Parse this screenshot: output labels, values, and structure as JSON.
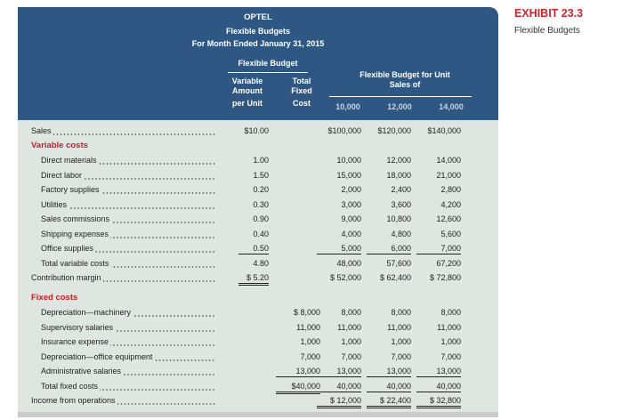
{
  "exhibit": {
    "label": "EXHIBIT 23.3",
    "subtitle": "Flexible Budgets"
  },
  "header": {
    "company": "OPTEL",
    "title": "Flexible Budgets",
    "period": "For Month Ended January 31, 2015",
    "group_left": "Flexible Budget",
    "col_var": [
      "Variable",
      "Amount",
      "per Unit"
    ],
    "col_fixed": [
      "Total",
      "Fixed",
      "Cost"
    ],
    "group_right": [
      "Flexible Budget for Unit",
      "Sales of"
    ],
    "units": [
      "10,000",
      "12,000",
      "14,000"
    ]
  },
  "rows": [
    {
      "label": "Sales",
      "type": "item",
      "indent": 0,
      "v": "$10.00",
      "f": "",
      "a": "$100,000",
      "b": "$120,000",
      "c": "$140,000"
    },
    {
      "label": "Variable costs",
      "type": "section"
    },
    {
      "label": "Direct materials",
      "type": "item",
      "indent": 1,
      "v": "1.00",
      "f": "",
      "a": "10,000",
      "b": "12,000",
      "c": "14,000"
    },
    {
      "label": "Direct labor",
      "type": "item",
      "indent": 1,
      "v": "1.50",
      "f": "",
      "a": "15,000",
      "b": "18,000",
      "c": "21,000"
    },
    {
      "label": "Factory supplies",
      "type": "item",
      "indent": 1,
      "v": "0.20",
      "f": "",
      "a": "2,000",
      "b": "2,400",
      "c": "2,800"
    },
    {
      "label": "Utilities",
      "type": "item",
      "indent": 1,
      "v": "0.30",
      "f": "",
      "a": "3,000",
      "b": "3,600",
      "c": "4,200"
    },
    {
      "label": "Sales commissions",
      "type": "item",
      "indent": 1,
      "v": "0.90",
      "f": "",
      "a": "9,000",
      "b": "10,800",
      "c": "12,600"
    },
    {
      "label": "Shipping expenses",
      "type": "item",
      "indent": 1,
      "v": "0.40",
      "f": "",
      "a": "4,000",
      "b": "4,800",
      "c": "5,600"
    },
    {
      "label": "Office supplies",
      "type": "item",
      "indent": 1,
      "v": "0.50",
      "f": "",
      "a": "5,000",
      "b": "6,000",
      "c": "7,000",
      "u": {
        "v": 1,
        "a": 1,
        "b": 1,
        "c": 1
      }
    },
    {
      "label": "Total variable costs",
      "type": "item",
      "indent": 1,
      "v": "4.80",
      "f": "",
      "a": "48,000",
      "b": "57,600",
      "c": "67,200"
    },
    {
      "label": "Contribution margin",
      "type": "item",
      "indent": 0,
      "v": "$ 5.20",
      "f": "",
      "a": "$ 52,000",
      "b": "$ 62,400",
      "c": "$ 72,800",
      "u": {
        "v": 2
      }
    },
    {
      "label": "Fixed costs",
      "type": "section",
      "gap": true
    },
    {
      "label": "Depreciation—machinery",
      "type": "item",
      "indent": 1,
      "v": "",
      "f": "$ 8,000",
      "a": "8,000",
      "b": "8,000",
      "c": "8,000"
    },
    {
      "label": "Supervisory salaries",
      "type": "item",
      "indent": 1,
      "v": "",
      "f": "11,000",
      "a": "11,000",
      "b": "11,000",
      "c": "11,000"
    },
    {
      "label": "Insurance expense",
      "type": "item",
      "indent": 1,
      "v": "",
      "f": "1,000",
      "a": "1,000",
      "b": "1,000",
      "c": "1,000"
    },
    {
      "label": "Depreciation—office equipment",
      "type": "item",
      "indent": 1,
      "v": "",
      "f": "7,000",
      "a": "7,000",
      "b": "7,000",
      "c": "7,000"
    },
    {
      "label": "Administrative salaries",
      "type": "item",
      "indent": 1,
      "v": "",
      "f": "13,000",
      "a": "13,000",
      "b": "13,000",
      "c": "13,000",
      "u": {
        "f": 1,
        "a": 1,
        "b": 1,
        "c": 1
      }
    },
    {
      "label": "Total fixed costs",
      "type": "item",
      "indent": 1,
      "v": "",
      "f": "$40,000",
      "a": "40,000",
      "b": "40,000",
      "c": "40,000",
      "u": {
        "f": 2,
        "a": 1,
        "b": 1,
        "c": 1
      }
    },
    {
      "label": "Income from operations",
      "type": "item",
      "indent": 0,
      "v": "",
      "f": "",
      "a": "$ 12,000",
      "b": "$ 22,400",
      "c": "$ 32,800",
      "u": {
        "a": 2,
        "b": 2,
        "c": 2
      }
    }
  ],
  "colors": {
    "header": "#2f5784",
    "body": "#dfe5e0",
    "section": "#c41e2b",
    "exhibit": "#d0242e"
  }
}
